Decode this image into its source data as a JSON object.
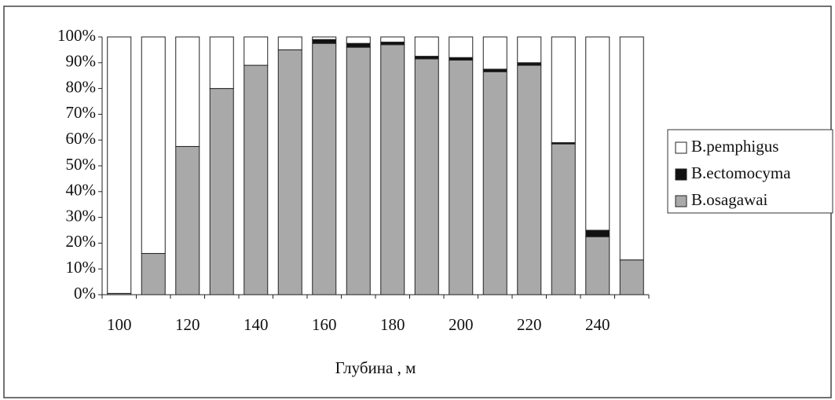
{
  "chart_data": {
    "type": "stacked_bar",
    "x_label": "Глубина , м",
    "categories": [
      "100",
      null,
      "120",
      null,
      "140",
      null,
      "160",
      null,
      "180",
      null,
      "200",
      null,
      "220",
      null,
      "240",
      null
    ],
    "series": [
      {
        "name": "B.osagawai",
        "color": "#a9a9a9",
        "values": [
          0.5,
          16,
          57.5,
          80,
          89,
          95,
          97.5,
          96,
          97,
          91.5,
          91,
          86.5,
          89,
          58.5,
          22.5,
          13.5
        ]
      },
      {
        "name": "B.ectomocyma",
        "color": "#111111",
        "values": [
          0,
          0,
          0,
          0,
          0,
          0,
          1.5,
          1.5,
          1,
          1,
          1,
          1,
          1,
          0.5,
          2.5,
          0
        ]
      },
      {
        "name": "B.pemphigus",
        "color": "#ffffff",
        "values": [
          99.5,
          84,
          42.5,
          20,
          11,
          5,
          1,
          2.5,
          2,
          7.5,
          8,
          12.5,
          10,
          41,
          75,
          86.5
        ]
      }
    ],
    "ylim": [
      0,
      100
    ],
    "yticks": [
      {
        "value": 0,
        "label": "0%"
      },
      {
        "value": 10,
        "label": "10%"
      },
      {
        "value": 20,
        "label": "20%"
      },
      {
        "value": 30,
        "label": "30%"
      },
      {
        "value": 40,
        "label": "40%"
      },
      {
        "value": 50,
        "label": "50%"
      },
      {
        "value": 60,
        "label": "60%"
      },
      {
        "value": 70,
        "label": "70%"
      },
      {
        "value": 80,
        "label": "80%"
      },
      {
        "value": 90,
        "label": "90%"
      },
      {
        "value": 100,
        "label": "100%"
      }
    ],
    "legend": "right"
  }
}
